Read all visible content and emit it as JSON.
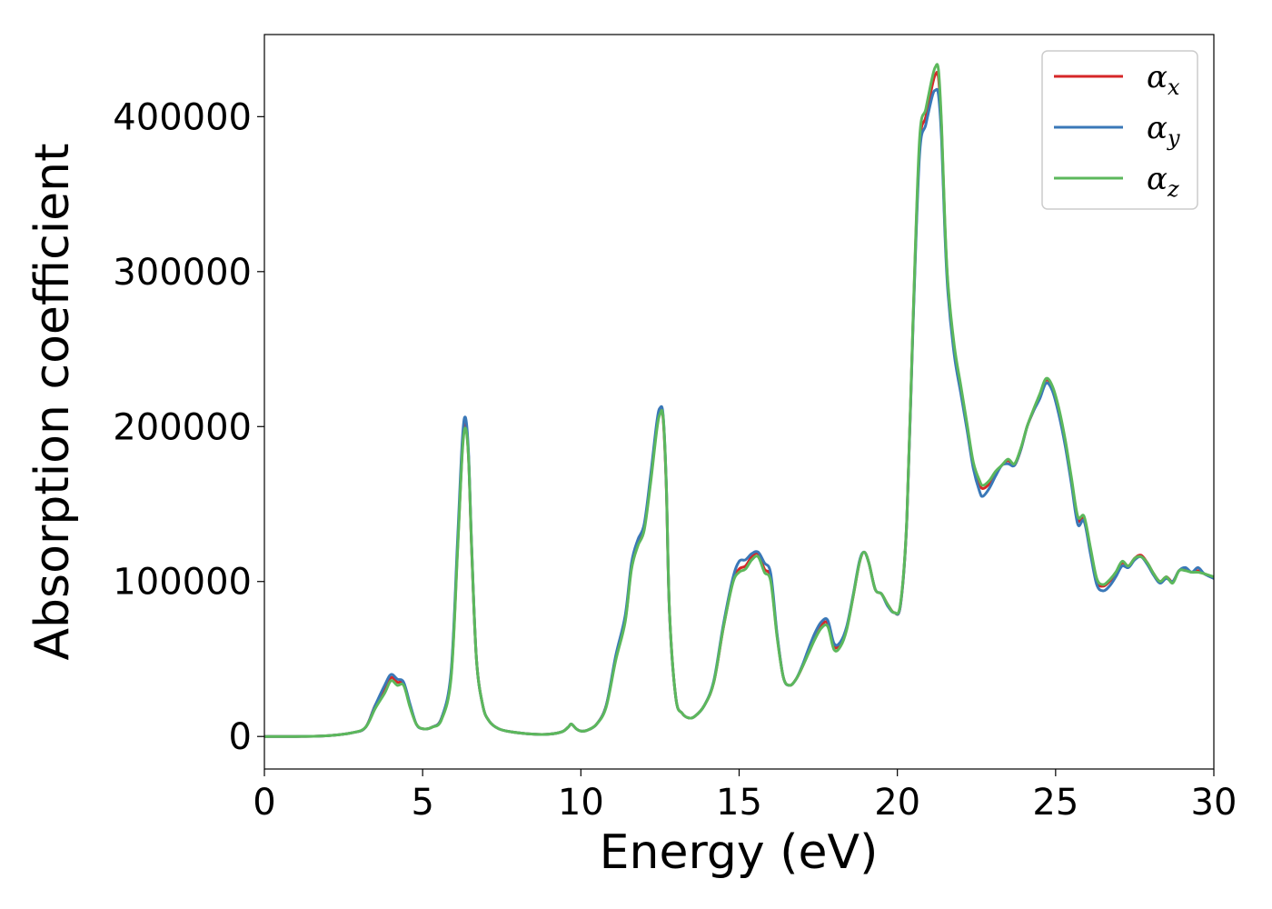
{
  "chart_data": {
    "type": "line",
    "xlabel": "Energy (eV)",
    "ylabel": "Absorption coefficient",
    "xlim": [
      0,
      30
    ],
    "ylim": [
      -21000,
      453000
    ],
    "xticks": [
      0,
      5,
      10,
      15,
      20,
      25,
      30
    ],
    "xtick_labels": [
      "0",
      "5",
      "10",
      "15",
      "20",
      "25",
      "30"
    ],
    "yticks": [
      0,
      100000,
      200000,
      300000,
      400000
    ],
    "ytick_labels": [
      "0",
      "100000",
      "200000",
      "300000",
      "400000"
    ],
    "grid": false,
    "legend_position": "top-right",
    "series": [
      {
        "name": "α",
        "subscript": "x",
        "color": "#d62728",
        "x": [
          0,
          1,
          2,
          2.8,
          3.2,
          3.5,
          3.8,
          4.0,
          4.2,
          4.4,
          4.6,
          4.8,
          5.0,
          5.3,
          5.6,
          5.9,
          6.1,
          6.25,
          6.35,
          6.45,
          6.55,
          6.7,
          6.9,
          7.1,
          7.4,
          7.8,
          8.5,
          9.0,
          9.4,
          9.6,
          9.7,
          9.85,
          10.0,
          10.2,
          10.5,
          10.8,
          11.1,
          11.4,
          11.6,
          11.8,
          12.0,
          12.2,
          12.4,
          12.5,
          12.6,
          12.7,
          12.8,
          13.0,
          13.2,
          13.4,
          13.6,
          13.9,
          14.2,
          14.5,
          14.8,
          15.0,
          15.2,
          15.4,
          15.6,
          15.8,
          16.0,
          16.2,
          16.4,
          16.6,
          16.8,
          17.0,
          17.2,
          17.4,
          17.6,
          17.8,
          18.0,
          18.2,
          18.4,
          18.6,
          18.8,
          18.95,
          19.1,
          19.3,
          19.5,
          19.7,
          19.9,
          20.1,
          20.3,
          20.5,
          20.7,
          20.9,
          21.1,
          21.2,
          21.3,
          21.4,
          21.5,
          21.6,
          21.8,
          22.0,
          22.2,
          22.4,
          22.6,
          22.7,
          22.9,
          23.1,
          23.3,
          23.5,
          23.7,
          23.9,
          24.1,
          24.3,
          24.5,
          24.7,
          24.9,
          25.1,
          25.3,
          25.5,
          25.7,
          25.9,
          26.1,
          26.3,
          26.5,
          26.7,
          26.9,
          27.1,
          27.3,
          27.5,
          27.7,
          27.9,
          28.1,
          28.3,
          28.5,
          28.7,
          28.9,
          29.1,
          29.3,
          29.5,
          29.7,
          30
        ],
        "y": [
          0,
          0,
          500,
          2500,
          6000,
          20000,
          30000,
          38000,
          35000,
          34000,
          20000,
          8000,
          5000,
          6000,
          12000,
          40000,
          120000,
          185000,
          202000,
          180000,
          120000,
          50000,
          20000,
          10000,
          5000,
          3000,
          1500,
          1500,
          3000,
          6000,
          8000,
          5000,
          3500,
          4000,
          8000,
          20000,
          50000,
          75000,
          110000,
          125000,
          135000,
          165000,
          200000,
          210000,
          205000,
          160000,
          80000,
          25000,
          15000,
          12000,
          13000,
          20000,
          35000,
          70000,
          100000,
          108000,
          110000,
          116000,
          118000,
          108000,
          102000,
          65000,
          38000,
          33000,
          37000,
          45000,
          55000,
          65000,
          72000,
          73000,
          58000,
          60000,
          70000,
          90000,
          112000,
          119000,
          112000,
          95000,
          92000,
          85000,
          80000,
          85000,
          140000,
          270000,
          380000,
          400000,
          420000,
          427000,
          425000,
          390000,
          330000,
          290000,
          250000,
          225000,
          200000,
          175000,
          163000,
          160000,
          163000,
          170000,
          175000,
          178000,
          175000,
          185000,
          200000,
          210000,
          220000,
          230000,
          225000,
          210000,
          190000,
          165000,
          140000,
          140000,
          120000,
          100000,
          97000,
          100000,
          105000,
          112000,
          110000,
          115000,
          117000,
          112000,
          105000,
          100000,
          103000,
          100000,
          107000,
          108000,
          106000,
          107000,
          105000,
          102000
        ]
      },
      {
        "name": "α",
        "subscript": "y",
        "color": "#3a78b8",
        "x": [
          0,
          1,
          2,
          2.8,
          3.2,
          3.5,
          3.8,
          4.0,
          4.2,
          4.4,
          4.6,
          4.8,
          5.0,
          5.3,
          5.6,
          5.9,
          6.1,
          6.25,
          6.35,
          6.45,
          6.55,
          6.7,
          6.9,
          7.1,
          7.4,
          7.8,
          8.5,
          9.0,
          9.4,
          9.6,
          9.7,
          9.85,
          10.0,
          10.2,
          10.5,
          10.8,
          11.1,
          11.4,
          11.6,
          11.8,
          12.0,
          12.2,
          12.4,
          12.5,
          12.6,
          12.7,
          12.8,
          13.0,
          13.2,
          13.4,
          13.6,
          13.9,
          14.2,
          14.5,
          14.8,
          15.0,
          15.2,
          15.4,
          15.6,
          15.8,
          16.0,
          16.2,
          16.4,
          16.6,
          16.8,
          17.0,
          17.2,
          17.4,
          17.6,
          17.8,
          18.0,
          18.2,
          18.4,
          18.6,
          18.8,
          18.95,
          19.1,
          19.3,
          19.5,
          19.7,
          19.9,
          20.1,
          20.3,
          20.5,
          20.7,
          20.9,
          21.1,
          21.2,
          21.3,
          21.4,
          21.5,
          21.6,
          21.8,
          22.0,
          22.2,
          22.4,
          22.6,
          22.7,
          22.9,
          23.1,
          23.3,
          23.5,
          23.7,
          23.9,
          24.1,
          24.3,
          24.5,
          24.7,
          24.9,
          25.1,
          25.3,
          25.5,
          25.7,
          25.9,
          26.1,
          26.3,
          26.5,
          26.7,
          26.9,
          27.1,
          27.3,
          27.5,
          27.7,
          27.9,
          28.1,
          28.3,
          28.5,
          28.7,
          28.9,
          29.1,
          29.3,
          29.5,
          29.7,
          30
        ],
        "y": [
          0,
          0,
          500,
          2500,
          6000,
          20000,
          33000,
          40000,
          37000,
          35000,
          21000,
          8000,
          5000,
          6000,
          12000,
          42000,
          125000,
          190000,
          206000,
          183000,
          122000,
          50000,
          20000,
          10000,
          5000,
          3000,
          1500,
          1500,
          3000,
          6000,
          8000,
          5000,
          3500,
          4000,
          8000,
          20000,
          52000,
          78000,
          112000,
          127000,
          137000,
          168000,
          203000,
          212000,
          207000,
          162000,
          80000,
          25000,
          15000,
          12000,
          13000,
          20000,
          36000,
          72000,
          102000,
          113000,
          114000,
          118000,
          119000,
          112000,
          105000,
          66000,
          38000,
          33000,
          37000,
          46000,
          57000,
          67000,
          74000,
          75000,
          60000,
          61000,
          71000,
          91000,
          113000,
          119000,
          112000,
          95000,
          92000,
          84000,
          80000,
          85000,
          140000,
          268000,
          375000,
          395000,
          413000,
          417000,
          414000,
          384000,
          326000,
          286000,
          246000,
          222000,
          198000,
          173000,
          158000,
          155000,
          160000,
          168000,
          175000,
          176000,
          175000,
          185000,
          200000,
          210000,
          218000,
          228000,
          223000,
          208000,
          188000,
          163000,
          137000,
          139000,
          118000,
          98000,
          94000,
          97000,
          103000,
          110000,
          109000,
          114000,
          116000,
          111000,
          104000,
          99000,
          102000,
          100000,
          107000,
          109000,
          106000,
          109000,
          105000,
          102000
        ]
      },
      {
        "name": "α",
        "subscript": "z",
        "color": "#5cb85c",
        "x": [
          0,
          1,
          2,
          2.8,
          3.2,
          3.5,
          3.8,
          4.0,
          4.2,
          4.4,
          4.6,
          4.8,
          5.0,
          5.3,
          5.6,
          5.9,
          6.1,
          6.25,
          6.35,
          6.45,
          6.55,
          6.7,
          6.9,
          7.1,
          7.4,
          7.8,
          8.5,
          9.0,
          9.4,
          9.6,
          9.7,
          9.85,
          10.0,
          10.2,
          10.5,
          10.8,
          11.1,
          11.4,
          11.6,
          11.8,
          12.0,
          12.2,
          12.4,
          12.5,
          12.6,
          12.7,
          12.8,
          13.0,
          13.2,
          13.4,
          13.6,
          13.9,
          14.2,
          14.5,
          14.8,
          15.0,
          15.2,
          15.4,
          15.6,
          15.8,
          16.0,
          16.2,
          16.4,
          16.6,
          16.8,
          17.0,
          17.2,
          17.4,
          17.6,
          17.8,
          18.0,
          18.2,
          18.4,
          18.6,
          18.8,
          18.95,
          19.1,
          19.3,
          19.5,
          19.7,
          19.9,
          20.1,
          20.3,
          20.5,
          20.7,
          20.9,
          21.1,
          21.2,
          21.3,
          21.4,
          21.5,
          21.6,
          21.8,
          22.0,
          22.2,
          22.4,
          22.6,
          22.7,
          22.9,
          23.1,
          23.3,
          23.5,
          23.7,
          23.9,
          24.1,
          24.3,
          24.5,
          24.7,
          24.9,
          25.1,
          25.3,
          25.5,
          25.7,
          25.9,
          26.1,
          26.3,
          26.5,
          26.7,
          26.9,
          27.1,
          27.3,
          27.5,
          27.7,
          27.9,
          28.1,
          28.3,
          28.5,
          28.7,
          28.9,
          29.1,
          29.3,
          29.5,
          29.7,
          30
        ],
        "y": [
          0,
          0,
          500,
          2500,
          6000,
          18000,
          28000,
          36000,
          33000,
          33000,
          19000,
          8000,
          5000,
          6000,
          11000,
          38000,
          118000,
          182000,
          199000,
          180000,
          121000,
          50000,
          20000,
          10000,
          5000,
          3000,
          1500,
          1500,
          3000,
          6000,
          8000,
          5000,
          3500,
          4000,
          8000,
          19000,
          49000,
          74000,
          108000,
          123000,
          133000,
          163000,
          198000,
          208000,
          206000,
          162000,
          81000,
          25000,
          15000,
          12000,
          13000,
          20000,
          35000,
          70000,
          99000,
          106000,
          108000,
          114000,
          116000,
          106000,
          100000,
          64000,
          38000,
          33000,
          37000,
          45000,
          54000,
          63000,
          70000,
          71000,
          56000,
          58000,
          69000,
          90000,
          112000,
          119000,
          112000,
          95000,
          92000,
          85000,
          80000,
          86000,
          141000,
          272000,
          385000,
          405000,
          425000,
          432000,
          430000,
          393000,
          333000,
          292000,
          252000,
          227000,
          202000,
          177000,
          165000,
          162000,
          165000,
          171000,
          175000,
          179000,
          176000,
          186000,
          200000,
          211000,
          221000,
          231000,
          226000,
          212000,
          192000,
          167000,
          142000,
          142000,
          122000,
          102000,
          98000,
          101000,
          106000,
          113000,
          110000,
          115000,
          116000,
          112000,
          105000,
          100000,
          103000,
          99000,
          107000,
          107000,
          106000,
          106000,
          105000,
          103000
        ]
      }
    ]
  }
}
